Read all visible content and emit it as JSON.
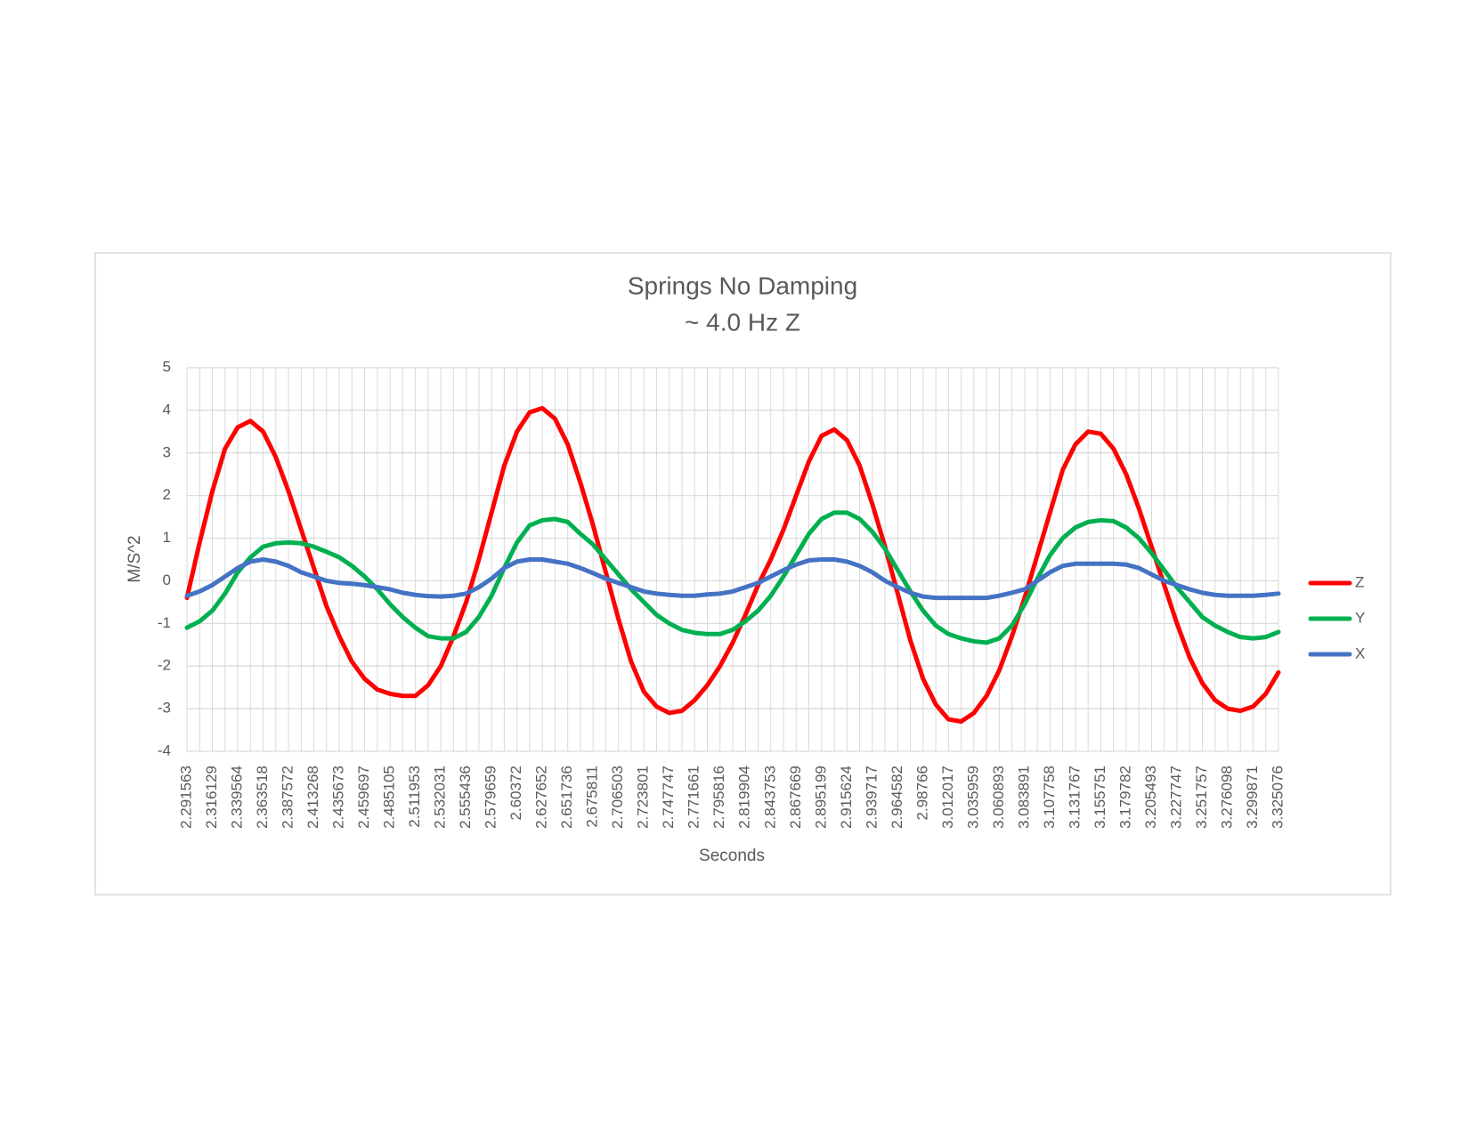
{
  "chart_data": {
    "type": "line",
    "title": "Springs No Damping",
    "subtitle": "~ 4.0 Hz Z",
    "x_label": "Seconds",
    "y_label": "M/S^2",
    "categories": [
      "2.291563",
      null,
      "2.316129",
      null,
      "2.339564",
      null,
      "2.363518",
      null,
      "2.387572",
      null,
      "2.413268",
      null,
      "2.435673",
      null,
      "2.459697",
      null,
      "2.485105",
      null,
      "2.511953",
      null,
      "2.532031",
      null,
      "2.555436",
      null,
      "2.579659",
      null,
      "2.60372",
      null,
      "2.627652",
      null,
      "2.651736",
      null,
      "2.675811",
      null,
      "2.706503",
      null,
      "2.723801",
      null,
      "2.747747",
      null,
      "2.771661",
      null,
      "2.795816",
      null,
      "2.819904",
      null,
      "2.843753",
      null,
      "2.867669",
      null,
      "2.895199",
      null,
      "2.915624",
      null,
      "2.939717",
      null,
      "2.964582",
      null,
      "2.98766",
      null,
      "3.012017",
      null,
      "3.035959",
      null,
      "3.060893",
      null,
      "3.083891",
      null,
      "3.107758",
      null,
      "3.131767",
      null,
      "3.155751",
      null,
      "3.179782",
      null,
      "3.205493",
      null,
      "3.227747",
      null,
      "3.251757",
      null,
      "3.276098",
      null,
      "3.299871",
      null,
      "3.325076"
    ],
    "series": [
      {
        "name": "Z",
        "color": "#ff0000",
        "values": [
          -0.4,
          0.9,
          2.1,
          3.1,
          3.6,
          3.75,
          3.5,
          2.9,
          2.1,
          1.2,
          0.3,
          -0.6,
          -1.3,
          -1.9,
          -2.3,
          -2.55,
          -2.65,
          -2.7,
          -2.7,
          -2.45,
          -2.0,
          -1.3,
          -0.5,
          0.5,
          1.6,
          2.7,
          3.5,
          3.95,
          4.05,
          3.8,
          3.2,
          2.3,
          1.3,
          0.2,
          -0.9,
          -1.9,
          -2.6,
          -2.95,
          -3.1,
          -3.05,
          -2.8,
          -2.45,
          -2.0,
          -1.45,
          -0.8,
          -0.1,
          0.5,
          1.2,
          2.0,
          2.8,
          3.4,
          3.55,
          3.3,
          2.7,
          1.8,
          0.8,
          -0.3,
          -1.4,
          -2.3,
          -2.9,
          -3.25,
          -3.3,
          -3.1,
          -2.7,
          -2.1,
          -1.3,
          -0.4,
          0.6,
          1.6,
          2.6,
          3.2,
          3.5,
          3.45,
          3.1,
          2.5,
          1.7,
          0.8,
          -0.1,
          -1.0,
          -1.8,
          -2.4,
          -2.8,
          -3.0,
          -3.05,
          -2.95,
          -2.65,
          -2.15
        ]
      },
      {
        "name": "Y",
        "color": "#00b050",
        "values": [
          -1.1,
          -0.95,
          -0.7,
          -0.3,
          0.2,
          0.55,
          0.8,
          0.88,
          0.9,
          0.88,
          0.8,
          0.68,
          0.55,
          0.35,
          0.1,
          -0.2,
          -0.55,
          -0.85,
          -1.1,
          -1.3,
          -1.35,
          -1.35,
          -1.2,
          -0.85,
          -0.35,
          0.3,
          0.9,
          1.3,
          1.42,
          1.45,
          1.38,
          1.1,
          0.85,
          0.5,
          0.15,
          -0.2,
          -0.5,
          -0.8,
          -1.0,
          -1.15,
          -1.22,
          -1.25,
          -1.25,
          -1.15,
          -0.95,
          -0.7,
          -0.35,
          0.1,
          0.6,
          1.1,
          1.45,
          1.6,
          1.6,
          1.45,
          1.15,
          0.75,
          0.25,
          -0.25,
          -0.7,
          -1.05,
          -1.25,
          -1.35,
          -1.42,
          -1.45,
          -1.35,
          -1.05,
          -0.55,
          0.05,
          0.6,
          1.0,
          1.25,
          1.38,
          1.42,
          1.4,
          1.25,
          1.0,
          0.65,
          0.25,
          -0.15,
          -0.5,
          -0.85,
          -1.05,
          -1.2,
          -1.32,
          -1.35,
          -1.32,
          -1.2
        ]
      },
      {
        "name": "X",
        "color": "#4472c4",
        "values": [
          -0.35,
          -0.25,
          -0.1,
          0.1,
          0.3,
          0.45,
          0.5,
          0.45,
          0.35,
          0.2,
          0.1,
          0.0,
          -0.05,
          -0.07,
          -0.1,
          -0.15,
          -0.2,
          -0.28,
          -0.33,
          -0.36,
          -0.37,
          -0.35,
          -0.3,
          -0.15,
          0.05,
          0.3,
          0.45,
          0.5,
          0.5,
          0.45,
          0.4,
          0.3,
          0.18,
          0.05,
          -0.05,
          -0.15,
          -0.25,
          -0.3,
          -0.33,
          -0.35,
          -0.35,
          -0.32,
          -0.3,
          -0.25,
          -0.15,
          -0.05,
          0.1,
          0.25,
          0.38,
          0.48,
          0.5,
          0.5,
          0.45,
          0.35,
          0.2,
          0.0,
          -0.15,
          -0.28,
          -0.37,
          -0.4,
          -0.4,
          -0.4,
          -0.4,
          -0.4,
          -0.35,
          -0.28,
          -0.2,
          0.0,
          0.2,
          0.35,
          0.4,
          0.4,
          0.4,
          0.4,
          0.38,
          0.3,
          0.15,
          0.0,
          -0.1,
          -0.2,
          -0.28,
          -0.33,
          -0.35,
          -0.35,
          -0.35,
          -0.33,
          -0.3
        ]
      }
    ],
    "ylim": [
      -4,
      5
    ],
    "yticks": [
      -4,
      -3,
      -2,
      -1,
      0,
      1,
      2,
      3,
      4,
      5
    ],
    "grid": true,
    "legend": "right"
  }
}
